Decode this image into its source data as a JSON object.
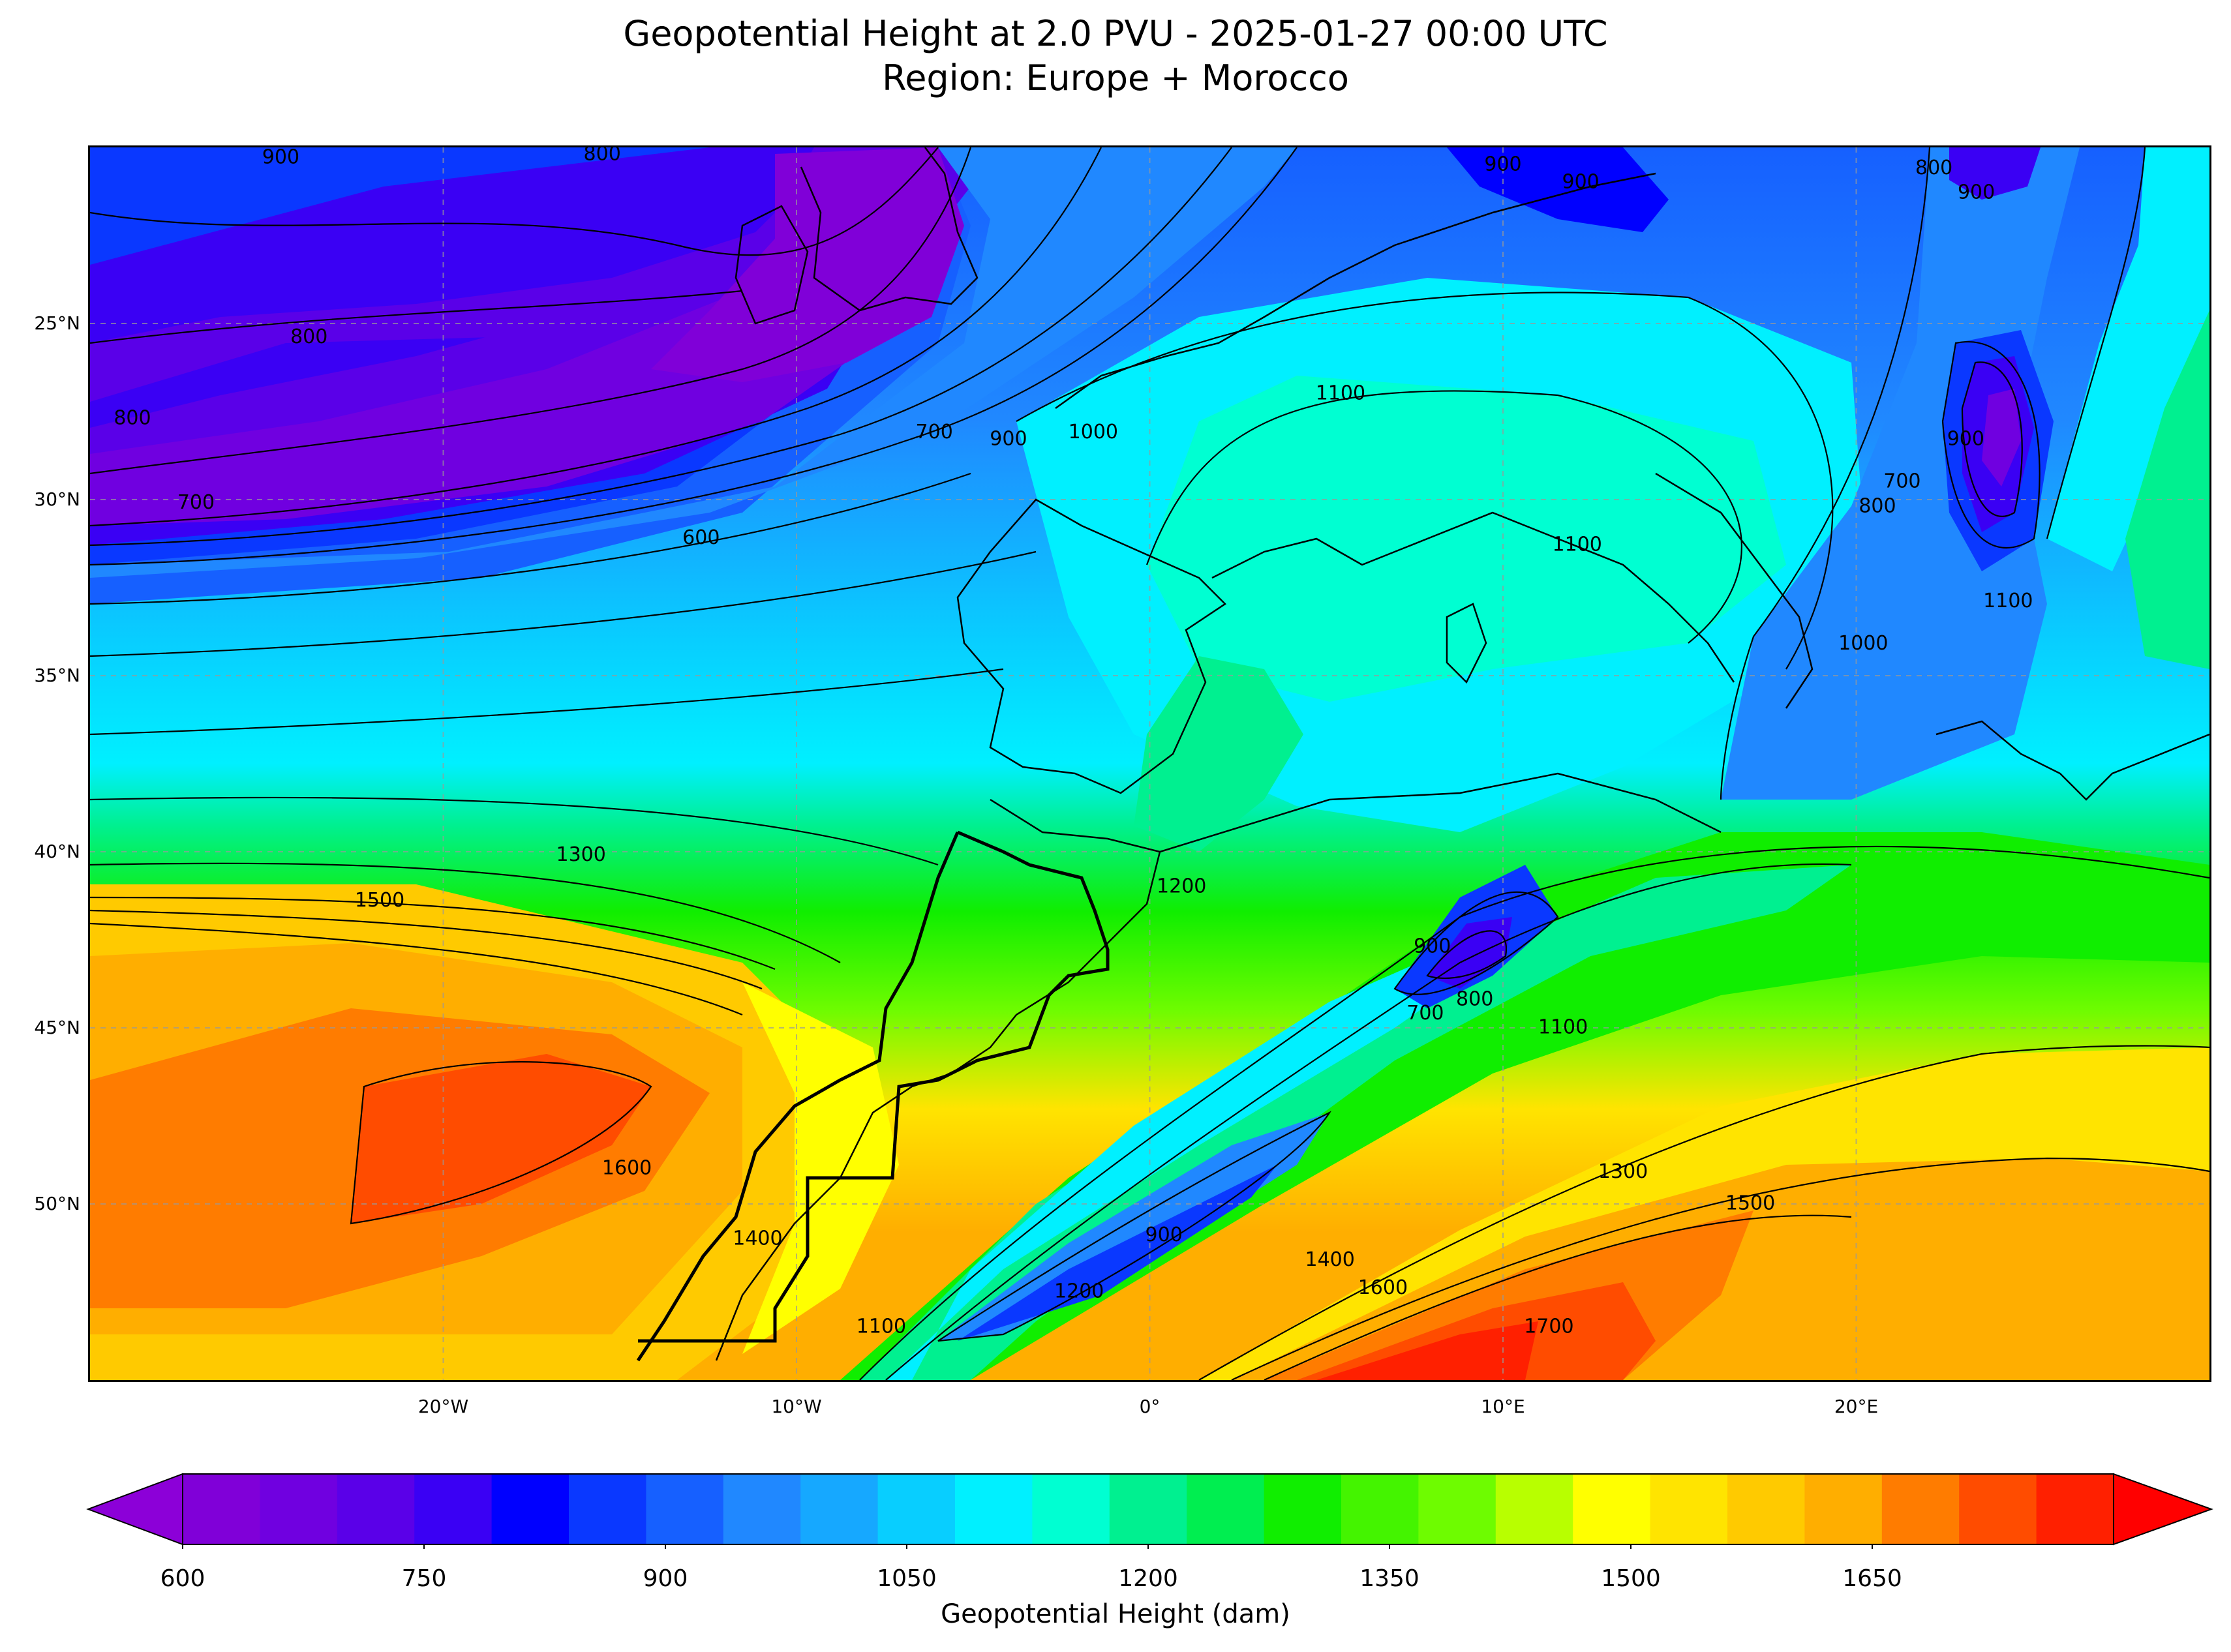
{
  "header": {
    "title": "Geopotential Height at 2.0 PVU - 2025-01-27 00:00 UTC",
    "subtitle": "Region: Europe + Morocco"
  },
  "axes": {
    "y_ticks": [
      "50°N",
      "45°N",
      "40°N",
      "35°N",
      "30°N",
      "25°N"
    ],
    "x_ticks": [
      "20°W",
      "10°W",
      "0°",
      "10°E",
      "20°E"
    ]
  },
  "map_data": {
    "type": "filled-contour map",
    "extent_lon": [
      -30,
      30
    ],
    "extent_lat": [
      20,
      55
    ],
    "gridlines": true,
    "gridline_lons": [
      -20,
      -10,
      0,
      10,
      20
    ],
    "gridline_lats": [
      25,
      30,
      35,
      40,
      45,
      50
    ],
    "variable": "Geopotential Height",
    "level": "2.0 PVU",
    "contour_labels": [
      {
        "text": "900",
        "lon": -24.6,
        "lat": 54.7
      },
      {
        "text": "800",
        "lon": -15.5,
        "lat": 54.8
      },
      {
        "text": "900",
        "lon": 10.0,
        "lat": 54.5
      },
      {
        "text": "900",
        "lon": 12.2,
        "lat": 54.0
      },
      {
        "text": "800",
        "lon": 22.2,
        "lat": 54.4
      },
      {
        "text": "900",
        "lon": 23.4,
        "lat": 53.7
      },
      {
        "text": "800",
        "lon": -23.8,
        "lat": 49.6
      },
      {
        "text": "800",
        "lon": -28.8,
        "lat": 47.3
      },
      {
        "text": "700",
        "lon": -27.0,
        "lat": 44.9
      },
      {
        "text": "600",
        "lon": -12.7,
        "lat": 43.9
      },
      {
        "text": "700",
        "lon": -6.1,
        "lat": 46.9
      },
      {
        "text": "900",
        "lon": -4.0,
        "lat": 46.7
      },
      {
        "text": "1000",
        "lon": -1.6,
        "lat": 46.9
      },
      {
        "text": "1100",
        "lon": 5.4,
        "lat": 48.0
      },
      {
        "text": "1100",
        "lon": 12.1,
        "lat": 43.7
      },
      {
        "text": "700",
        "lon": 21.3,
        "lat": 45.5
      },
      {
        "text": "800",
        "lon": 20.6,
        "lat": 44.8
      },
      {
        "text": "900",
        "lon": 23.1,
        "lat": 46.7
      },
      {
        "text": "1100",
        "lon": 24.3,
        "lat": 42.1
      },
      {
        "text": "1000",
        "lon": 20.2,
        "lat": 40.9
      },
      {
        "text": "1300",
        "lon": -16.1,
        "lat": 34.9
      },
      {
        "text": "1500",
        "lon": -21.8,
        "lat": 33.6
      },
      {
        "text": "1200",
        "lon": 0.9,
        "lat": 34.0
      },
      {
        "text": "900",
        "lon": 8.0,
        "lat": 32.3
      },
      {
        "text": "800",
        "lon": 9.2,
        "lat": 30.8
      },
      {
        "text": "700",
        "lon": 7.8,
        "lat": 30.4
      },
      {
        "text": "1100",
        "lon": 11.7,
        "lat": 30.0
      },
      {
        "text": "1600",
        "lon": -14.8,
        "lat": 26.0
      },
      {
        "text": "1300",
        "lon": 13.4,
        "lat": 25.9
      },
      {
        "text": "1500",
        "lon": 17.0,
        "lat": 25.0
      },
      {
        "text": "1400",
        "lon": -11.1,
        "lat": 24.0
      },
      {
        "text": "900",
        "lon": 0.4,
        "lat": 24.1
      },
      {
        "text": "1200",
        "lon": -2.0,
        "lat": 22.5
      },
      {
        "text": "1400",
        "lon": 5.1,
        "lat": 23.4
      },
      {
        "text": "1600",
        "lon": 6.6,
        "lat": 22.6
      },
      {
        "text": "1100",
        "lon": -7.6,
        "lat": 21.5
      },
      {
        "text": "1700",
        "lon": 11.3,
        "lat": 21.5
      }
    ]
  },
  "colorbar": {
    "label": "Geopotential Height (dam)",
    "ticks": [
      "600",
      "750",
      "900",
      "1050",
      "1200",
      "1350",
      "1500",
      "1650"
    ],
    "range": [
      600,
      1800
    ],
    "step": 50,
    "extend": "both",
    "colors": [
      "#8000d8",
      "#7000e0",
      "#5a00e8",
      "#3a00f4",
      "#0000ff",
      "#0a38ff",
      "#1660ff",
      "#2088ff",
      "#16a8ff",
      "#08ceff",
      "#00f0ff",
      "#00ffd2",
      "#00f090",
      "#00ee50",
      "#10ee00",
      "#44f400",
      "#6efc00",
      "#b8ff00",
      "#ffff00",
      "#ffe400",
      "#ffca00",
      "#ffae00",
      "#ff7c00",
      "#ff4c00",
      "#ff2000"
    ],
    "under_color": "#8c00d8",
    "over_color": "#ff0000"
  }
}
